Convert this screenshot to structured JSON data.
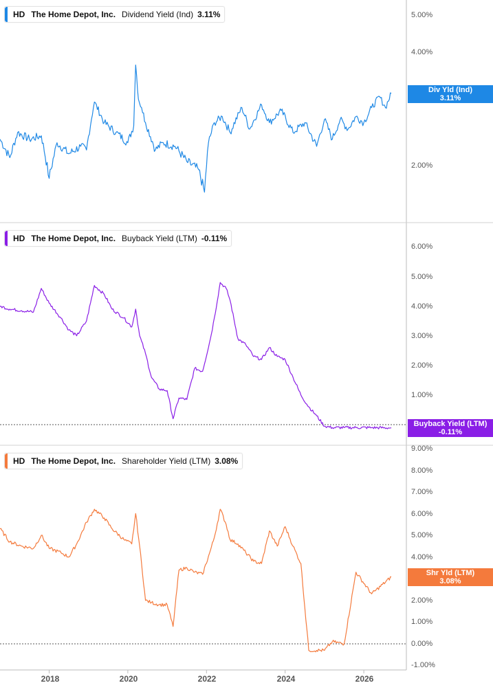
{
  "colors": {
    "dividend": "#1e88e5",
    "buyback": "#8a1ee6",
    "shareholder": "#f47a3c",
    "axis": "#bbbbbb",
    "zero_line": "#555555"
  },
  "x_axis": {
    "ticks": [
      "2018",
      "2020",
      "2022",
      "2024",
      "2026"
    ],
    "range": [
      2016.75,
      2027.05
    ]
  },
  "panels": [
    {
      "ticker": "HD",
      "company": "The Home Depot, Inc.",
      "metric": "Dividend Yield (Ind)",
      "value": "3.11%",
      "badge_label": "Div Yld (Ind)",
      "badge_value": "3.11%",
      "y_ticks": [
        "5.00%",
        "4.00%",
        "2.00%"
      ],
      "log_scale": true
    },
    {
      "ticker": "HD",
      "company": "The Home Depot, Inc.",
      "metric": "Buyback Yield (LTM)",
      "value": "-0.11%",
      "badge_label": "Buyback Yield (LTM)",
      "badge_value": "-0.11%",
      "y_ticks": [
        "6.00%",
        "5.00%",
        "4.00%",
        "3.00%",
        "2.00%",
        "1.00%"
      ]
    },
    {
      "ticker": "HD",
      "company": "The Home Depot, Inc.",
      "metric": "Shareholder Yield (LTM)",
      "value": "3.08%",
      "badge_label": "Shr Yld (LTM)",
      "badge_value": "3.08%",
      "y_ticks": [
        "9.00%",
        "8.00%",
        "7.00%",
        "6.00%",
        "5.00%",
        "4.00%",
        "2.00%",
        "1.00%",
        "0.00%",
        "-1.00%"
      ]
    }
  ],
  "chart_data": [
    {
      "type": "line",
      "title": "HD The Home Depot, Inc. Dividend Yield (Ind) 3.11%",
      "log_scale": true,
      "ylim": [
        1.5,
        5.5
      ],
      "series": [
        {
          "name": "Dividend Yield (Ind)",
          "x": [
            2016.75,
            2017.0,
            2017.2,
            2017.5,
            2017.8,
            2018.0,
            2018.2,
            2018.5,
            2018.8,
            2018.95,
            2019.15,
            2019.4,
            2019.7,
            2020.0,
            2020.15,
            2020.2,
            2020.27,
            2020.35,
            2020.45,
            2020.7,
            2020.9,
            2021.2,
            2021.5,
            2021.8,
            2021.95,
            2022.05,
            2022.2,
            2022.4,
            2022.6,
            2022.9,
            2023.1,
            2023.4,
            2023.6,
            2023.9,
            2024.2,
            2024.5,
            2024.8,
            2025.0,
            2025.2,
            2025.4,
            2025.6,
            2025.8,
            2026.0,
            2026.2,
            2026.4,
            2026.55,
            2026.7
          ],
          "values": [
            2.35,
            2.1,
            2.45,
            2.35,
            2.4,
            1.85,
            2.3,
            2.15,
            2.25,
            2.2,
            2.95,
            2.6,
            2.45,
            2.3,
            2.55,
            3.7,
            3.0,
            2.85,
            2.6,
            2.2,
            2.3,
            2.25,
            2.05,
            1.95,
            1.7,
            2.3,
            2.6,
            2.7,
            2.45,
            2.85,
            2.5,
            2.9,
            2.6,
            2.8,
            2.45,
            2.6,
            2.25,
            2.65,
            2.35,
            2.65,
            2.5,
            2.7,
            2.6,
            2.85,
            3.05,
            2.85,
            3.11
          ]
        }
      ]
    },
    {
      "type": "line",
      "title": "HD The Home Depot, Inc. Buyback Yield (LTM) -0.11%",
      "ylim": [
        -0.35,
        6.6
      ],
      "series": [
        {
          "name": "Buyback Yield (LTM)",
          "x": [
            2016.75,
            2017.0,
            2017.3,
            2017.6,
            2017.8,
            2018.0,
            2018.3,
            2018.5,
            2018.7,
            2018.95,
            2019.15,
            2019.4,
            2019.6,
            2019.9,
            2020.1,
            2020.2,
            2020.3,
            2020.45,
            2020.6,
            2020.8,
            2021.0,
            2021.15,
            2021.3,
            2021.5,
            2021.7,
            2021.9,
            2022.1,
            2022.2,
            2022.35,
            2022.5,
            2022.6,
            2022.8,
            2023.0,
            2023.2,
            2023.4,
            2023.6,
            2023.8,
            2024.0,
            2024.2,
            2024.4,
            2024.6,
            2024.8,
            2025.0,
            2025.2,
            2025.5,
            2025.8,
            2026.2,
            2026.7
          ],
          "values": [
            4.0,
            3.9,
            3.85,
            3.8,
            4.6,
            4.1,
            3.6,
            3.2,
            3.0,
            3.5,
            4.7,
            4.4,
            3.9,
            3.6,
            3.3,
            3.9,
            3.0,
            2.4,
            1.6,
            1.2,
            1.15,
            0.2,
            0.9,
            0.85,
            1.9,
            1.8,
            2.9,
            3.6,
            4.8,
            4.6,
            4.2,
            2.9,
            2.7,
            2.3,
            2.2,
            2.6,
            2.3,
            2.2,
            1.6,
            1.0,
            0.6,
            0.3,
            -0.05,
            -0.1,
            -0.1,
            -0.1,
            -0.1,
            -0.11
          ]
        }
      ]
    },
    {
      "type": "line",
      "title": "HD The Home Depot, Inc. Shareholder Yield (LTM) 3.08%",
      "ylim": [
        -1.2,
        9.4
      ],
      "series": [
        {
          "name": "Shareholder Yield (LTM)",
          "x": [
            2016.75,
            2017.0,
            2017.3,
            2017.6,
            2017.8,
            2018.0,
            2018.3,
            2018.5,
            2018.7,
            2018.95,
            2019.15,
            2019.4,
            2019.6,
            2019.9,
            2020.1,
            2020.2,
            2020.3,
            2020.45,
            2020.6,
            2020.8,
            2021.0,
            2021.15,
            2021.3,
            2021.5,
            2021.7,
            2021.9,
            2022.1,
            2022.2,
            2022.35,
            2022.5,
            2022.6,
            2022.8,
            2023.0,
            2023.2,
            2023.4,
            2023.6,
            2023.8,
            2024.0,
            2024.2,
            2024.4,
            2024.6,
            2024.8,
            2025.0,
            2025.2,
            2025.5,
            2025.8,
            2026.2,
            2026.7
          ],
          "values": [
            5.3,
            4.7,
            4.5,
            4.4,
            5.0,
            4.4,
            4.2,
            4.0,
            4.6,
            5.6,
            6.2,
            5.8,
            5.3,
            4.8,
            4.6,
            6.0,
            4.5,
            2.0,
            1.9,
            1.8,
            1.8,
            0.8,
            3.4,
            3.5,
            3.3,
            3.2,
            4.3,
            4.9,
            6.2,
            5.5,
            4.8,
            4.6,
            4.2,
            3.8,
            3.7,
            5.2,
            4.5,
            5.4,
            4.5,
            3.7,
            -0.3,
            -0.3,
            -0.3,
            0.1,
            0.0,
            3.3,
            2.3,
            3.08
          ]
        }
      ]
    }
  ]
}
